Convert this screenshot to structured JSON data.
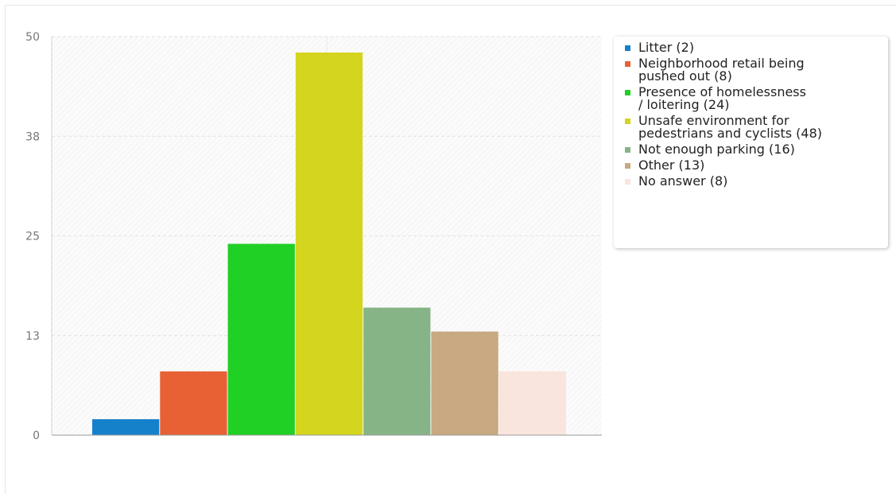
{
  "chart_data": {
    "type": "bar",
    "categories": [
      "Litter (2)",
      "Neighborhood retail being pushed out (8)",
      "Presence of homelessness / loitering (24)",
      "Unsafe environment for pedestrians and cyclists (48)",
      "Not enough parking (16)",
      "Other (13)",
      "No answer (8)"
    ],
    "values": [
      2,
      8,
      24,
      48,
      16,
      13,
      8
    ],
    "colors": [
      "#1581cb",
      "#e76134",
      "#20d024",
      "#d3d51e",
      "#86b487",
      "#c8a982",
      "#f9e5dd"
    ],
    "ylim": [
      0,
      50
    ],
    "yticks": [
      "0",
      "13",
      "25",
      "38",
      "50"
    ],
    "ytick_values": [
      0,
      12.5,
      25,
      37.5,
      50
    ],
    "grid": true,
    "legend_position": "right"
  },
  "legend": {
    "items": [
      {
        "label": "Litter (2)",
        "color": "#1581cb"
      },
      {
        "label": "Neighborhood retail being\npushed out (8)",
        "color": "#e76134"
      },
      {
        "label": "Presence of homelessness\n/ loitering (24)",
        "color": "#20d024"
      },
      {
        "label": "Unsafe environment for\npedestrians and cyclists (48)",
        "color": "#d3d51e"
      },
      {
        "label": "Not enough parking (16)",
        "color": "#86b487"
      },
      {
        "label": "Other (13)",
        "color": "#c8a982"
      },
      {
        "label": "No answer (8)",
        "color": "#f9e5dd"
      }
    ]
  }
}
